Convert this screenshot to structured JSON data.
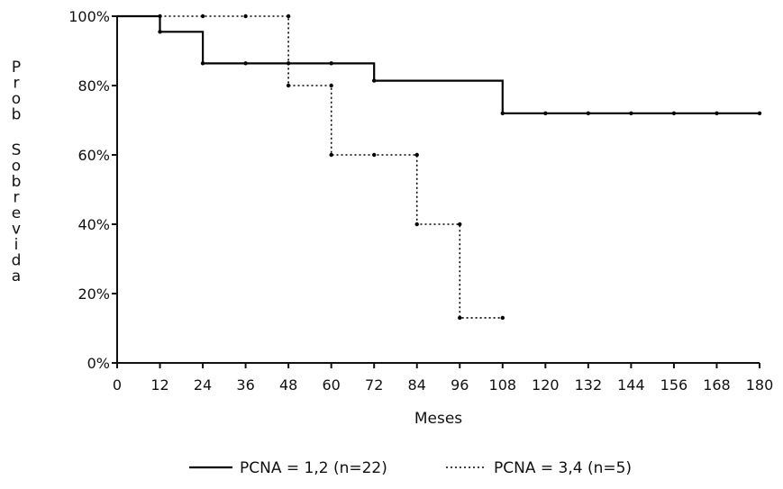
{
  "chart_data": {
    "type": "line",
    "title": "",
    "xlabel": "Meses",
    "ylabel": "Prob Sobrevida",
    "xlim": [
      0,
      180
    ],
    "ylim": [
      0,
      100
    ],
    "x_ticks": [
      0,
      12,
      24,
      36,
      48,
      60,
      72,
      84,
      96,
      108,
      120,
      132,
      144,
      156,
      168,
      180
    ],
    "x_tick_labels": [
      "0",
      "12",
      "24",
      "36",
      "48",
      "60",
      "72",
      "84",
      "96",
      "108",
      "120",
      "132",
      "144",
      "156",
      "168",
      "180"
    ],
    "y_ticks": [
      0,
      20,
      40,
      60,
      80,
      100
    ],
    "y_tick_labels": [
      "0%",
      "20%",
      "40%",
      "60%",
      "80%",
      "100%"
    ],
    "grid": false,
    "legend_position": "bottom",
    "step": true,
    "series": [
      {
        "name": "PCNA = 1,2 (n=22)",
        "style": "solid",
        "color": "#000000",
        "points": [
          [
            0,
            100
          ],
          [
            12,
            100
          ],
          [
            12,
            95.5
          ],
          [
            24,
            95.5
          ],
          [
            24,
            86.4
          ],
          [
            72,
            86.4
          ],
          [
            72,
            81.4
          ],
          [
            108,
            81.4
          ],
          [
            108,
            72
          ],
          [
            180,
            72
          ]
        ],
        "markers": [
          [
            12,
            95.5
          ],
          [
            24,
            86.4
          ],
          [
            36,
            86.4
          ],
          [
            48,
            86.4
          ],
          [
            60,
            86.4
          ],
          [
            72,
            81.4
          ],
          [
            108,
            72
          ],
          [
            120,
            72
          ],
          [
            132,
            72
          ],
          [
            144,
            72
          ],
          [
            156,
            72
          ],
          [
            168,
            72
          ],
          [
            180,
            72
          ]
        ]
      },
      {
        "name": "PCNA = 3,4 (n=5)",
        "style": "dotted",
        "color": "#000000",
        "points": [
          [
            12,
            100
          ],
          [
            48,
            100
          ],
          [
            48,
            80
          ],
          [
            60,
            80
          ],
          [
            60,
            60
          ],
          [
            84,
            60
          ],
          [
            84,
            40
          ],
          [
            96,
            40
          ],
          [
            96,
            13
          ],
          [
            108,
            13
          ]
        ],
        "markers": [
          [
            12,
            100
          ],
          [
            24,
            100
          ],
          [
            36,
            100
          ],
          [
            48,
            100
          ],
          [
            48,
            80
          ],
          [
            60,
            80
          ],
          [
            60,
            60
          ],
          [
            72,
            60
          ],
          [
            84,
            60
          ],
          [
            84,
            40
          ],
          [
            96,
            40
          ],
          [
            96,
            13
          ],
          [
            108,
            13
          ]
        ]
      }
    ]
  }
}
